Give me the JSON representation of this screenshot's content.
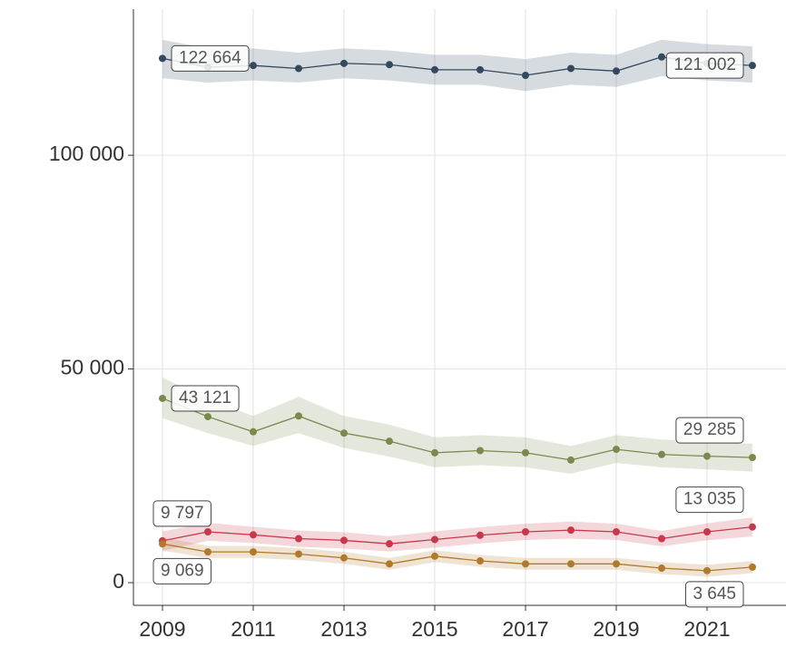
{
  "chart_data": {
    "type": "line",
    "x": [
      2009,
      2010,
      2011,
      2012,
      2013,
      2014,
      2015,
      2016,
      2017,
      2018,
      2019,
      2020,
      2021,
      2022
    ],
    "xlim": [
      2008.36,
      2022.74
    ],
    "xticks": [
      2009,
      2011,
      2013,
      2015,
      2017,
      2019,
      2021
    ],
    "ylim": [
      -5300,
      134200
    ],
    "yticks": [
      0,
      {
        "value": 50000,
        "label": "50 000"
      },
      {
        "value": 100000,
        "label": "100 000"
      }
    ],
    "grid": true,
    "series": [
      {
        "color": "#34495e",
        "values": [
          122664,
          120600,
          121000,
          120300,
          121500,
          121200,
          120000,
          120000,
          118700,
          120300,
          119700,
          123000,
          121500,
          121002
        ],
        "lower": [
          118000,
          117000,
          117500,
          117000,
          118000,
          117500,
          116500,
          116500,
          115000,
          116500,
          116000,
          118500,
          117500,
          117000
        ],
        "upper": [
          127000,
          125000,
          125000,
          124000,
          125000,
          124500,
          123500,
          123500,
          122500,
          124000,
          123500,
          127000,
          126000,
          125500
        ],
        "value_labels": [
          "122 664",
          null,
          null,
          null,
          null,
          null,
          null,
          null,
          null,
          null,
          null,
          null,
          null,
          "121 002"
        ]
      },
      {
        "color": "#7a8a4f",
        "values": [
          43121,
          38850,
          35300,
          39000,
          35000,
          33100,
          30400,
          30900,
          30400,
          28700,
          31200,
          30000,
          29600,
          29285
        ],
        "lower": [
          38500,
          35000,
          32000,
          35000,
          31500,
          29500,
          27000,
          27500,
          27000,
          25500,
          28000,
          27000,
          26500,
          26000
        ],
        "upper": [
          48000,
          43000,
          39000,
          43500,
          39000,
          37000,
          34000,
          34500,
          34000,
          32000,
          34500,
          33500,
          33000,
          32500
        ],
        "value_labels": [
          "43 121",
          null,
          null,
          null,
          null,
          null,
          null,
          null,
          null,
          null,
          null,
          null,
          null,
          "29 285"
        ]
      },
      {
        "color": "#c8384a",
        "values": [
          9797,
          11900,
          11200,
          10300,
          9900,
          9100,
          10100,
          11100,
          11900,
          12300,
          11900,
          10300,
          11900,
          13035
        ],
        "lower": [
          7500,
          9800,
          9300,
          8400,
          8000,
          7300,
          8200,
          9200,
          10000,
          10300,
          10000,
          8500,
          9900,
          10800
        ],
        "upper": [
          12000,
          14000,
          13100,
          12200,
          11800,
          10900,
          12000,
          13000,
          13800,
          14300,
          13800,
          12100,
          13900,
          15300
        ],
        "value_labels": [
          "9 797",
          null,
          null,
          null,
          null,
          null,
          null,
          null,
          null,
          null,
          null,
          null,
          null,
          "13 035"
        ]
      },
      {
        "color": "#b07a2a",
        "values": [
          9069,
          7200,
          7200,
          6700,
          5800,
          4400,
          6200,
          5100,
          4400,
          4400,
          4400,
          3400,
          2800,
          3645
        ],
        "lower": [
          7500,
          5800,
          5800,
          5300,
          4400,
          3000,
          4800,
          3700,
          3000,
          3000,
          3000,
          2000,
          1400,
          2200
        ],
        "upper": [
          10600,
          8600,
          8600,
          8100,
          7200,
          5800,
          7600,
          6500,
          5800,
          5800,
          5800,
          4800,
          4200,
          5100
        ],
        "value_labels": [
          "9 069",
          null,
          null,
          null,
          null,
          null,
          null,
          null,
          null,
          null,
          null,
          null,
          null,
          "3 645"
        ]
      }
    ]
  }
}
